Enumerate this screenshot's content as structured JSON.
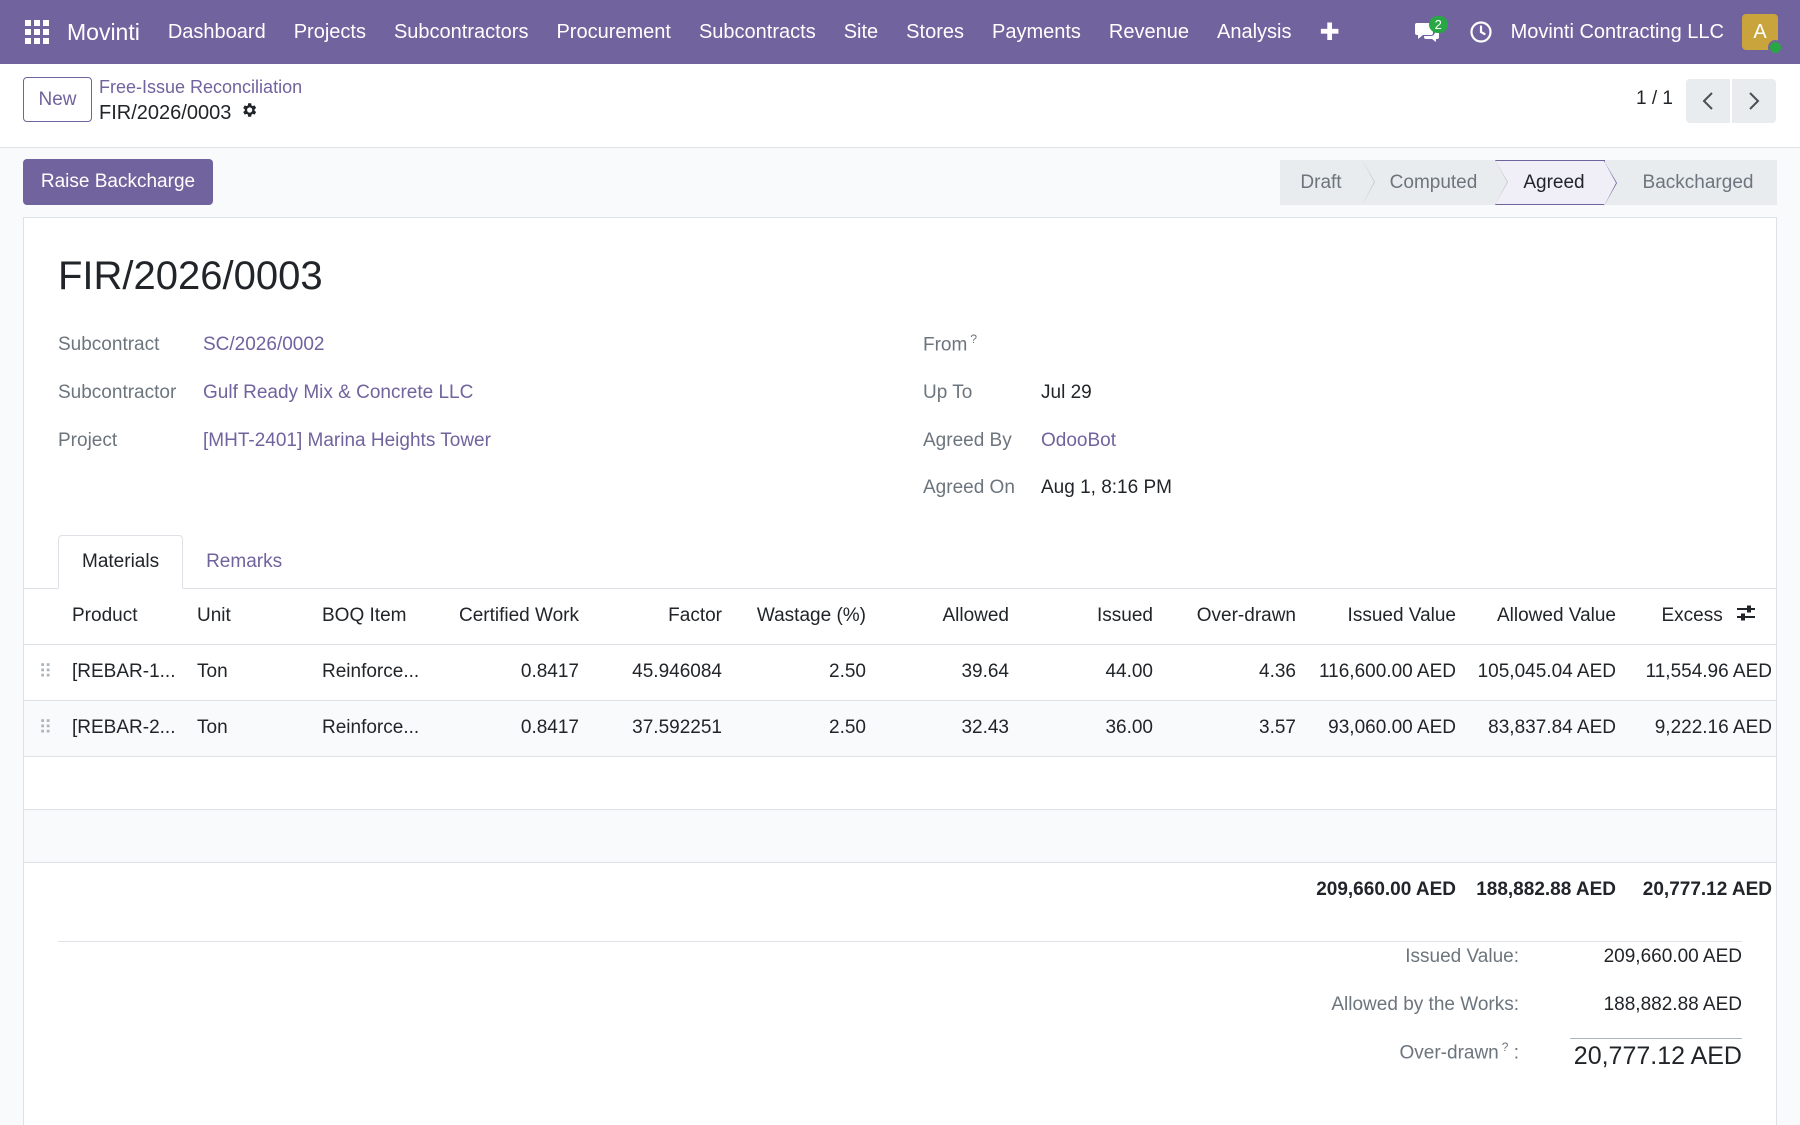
{
  "navbar": {
    "brand": "Movinti",
    "menu": [
      "Dashboard",
      "Projects",
      "Subcontractors",
      "Procurement",
      "Subcontracts",
      "Site",
      "Stores",
      "Payments",
      "Revenue",
      "Analysis"
    ],
    "plus_icon": "plus-icon",
    "chat_badge": "2",
    "company": "Movinti Contracting LLC",
    "avatar_initial": "A"
  },
  "control": {
    "new_label": "New",
    "breadcrumb_parent": "Free-Issue Reconciliation",
    "breadcrumb_current": "FIR/2026/0003",
    "pager_value": "1 / 1"
  },
  "actions": {
    "raise_backcharge": "Raise Backcharge"
  },
  "statusbar": {
    "stages": [
      "Draft",
      "Computed",
      "Agreed",
      "Backcharged"
    ],
    "active": "Agreed"
  },
  "record": {
    "title": "FIR/2026/0003",
    "left_fields": [
      {
        "label": "Subcontract",
        "value": "SC/2026/0002"
      },
      {
        "label": "Subcontractor",
        "value": "Gulf Ready Mix & Concrete LLC"
      },
      {
        "label": "Project",
        "value": "[MHT-2401] Marina Heights Tower"
      }
    ],
    "right_fields": [
      {
        "label": "From",
        "help": "?",
        "value": ""
      },
      {
        "label": "Up To",
        "value": "Jul 29"
      },
      {
        "label": "Agreed By",
        "value": "OdooBot"
      },
      {
        "label": "Agreed On",
        "value": "Aug 1, 8:16 PM"
      }
    ]
  },
  "tabs": [
    "Materials",
    "Remarks"
  ],
  "table": {
    "columns": [
      "Product",
      "Unit",
      "BOQ Item",
      "Certified Work",
      "Factor",
      "Wastage (%)",
      "Allowed",
      "Issued",
      "Over-drawn",
      "Issued Value",
      "Allowed Value",
      "Excess"
    ],
    "rows": [
      [
        "[REBAR-1...",
        "Ton",
        "Reinforce...",
        "0.8417",
        "45.946084",
        "2.50",
        "39.64",
        "44.00",
        "4.36",
        "116,600.00 AED",
        "105,045.04 AED",
        "11,554.96 AED"
      ],
      [
        "[REBAR-2...",
        "Ton",
        "Reinforce...",
        "0.8417",
        "37.592251",
        "2.50",
        "32.43",
        "36.00",
        "3.57",
        "93,060.00 AED",
        "83,837.84 AED",
        "9,222.16 AED"
      ]
    ],
    "totals": {
      "issued_value": "209,660.00 AED",
      "allowed_value": "188,882.88 AED",
      "excess": "20,777.12 AED"
    }
  },
  "summary": {
    "issued_label": "Issued Value:",
    "issued_value": "209,660.00 AED",
    "allowed_label": "Allowed by the Works:",
    "allowed_value": "188,882.88 AED",
    "overdrawn_label": "Over-drawn",
    "overdrawn_help": "?",
    "overdrawn_colon": ":",
    "overdrawn_value": "20,777.12 AED"
  },
  "colors": {
    "brand": "#71639e",
    "success": "#28a745"
  }
}
